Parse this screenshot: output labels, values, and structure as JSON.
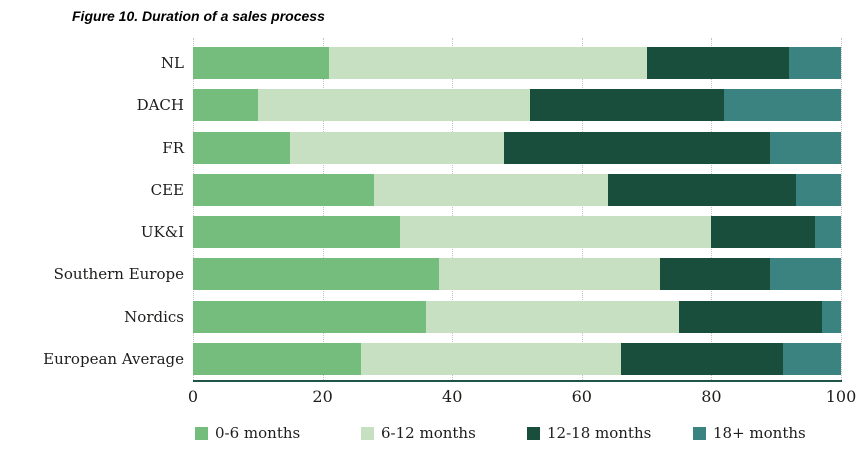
{
  "figure": {
    "title": "Figure 10. Duration of a sales process"
  },
  "style": {
    "axis_color": "#1f5548",
    "gridline_color": "#c3c3c3",
    "text_color": "#1d1d1b",
    "background": "#ffffff"
  },
  "chart_data": {
    "type": "bar",
    "orientation": "horizontal",
    "stacked": true,
    "title": "Figure 10. Duration of a sales process",
    "categories": [
      "NL",
      "DACH",
      "FR",
      "CEE",
      "UK&I",
      "Southern Europe",
      "Nordics",
      "European Average"
    ],
    "series": [
      {
        "name": "0-6 months",
        "color": "#74bd7c",
        "values": [
          21,
          10,
          15,
          28,
          32,
          38,
          36,
          26
        ]
      },
      {
        "name": "6-12 months",
        "color": "#c7e0c1",
        "values": [
          49,
          42,
          33,
          36,
          48,
          34,
          39,
          40
        ]
      },
      {
        "name": "12-18 months",
        "color": "#1a4e3c",
        "values": [
          22,
          30,
          41,
          29,
          16,
          17,
          22,
          25
        ]
      },
      {
        "name": "18+ months",
        "color": "#3b8381",
        "values": [
          8,
          18,
          11,
          7,
          4,
          11,
          3,
          9
        ]
      }
    ],
    "xlim": [
      0,
      100
    ],
    "x_ticks": [
      0,
      20,
      40,
      60,
      80,
      100
    ],
    "grid": "vertical-dotted",
    "legend_position": "bottom"
  }
}
